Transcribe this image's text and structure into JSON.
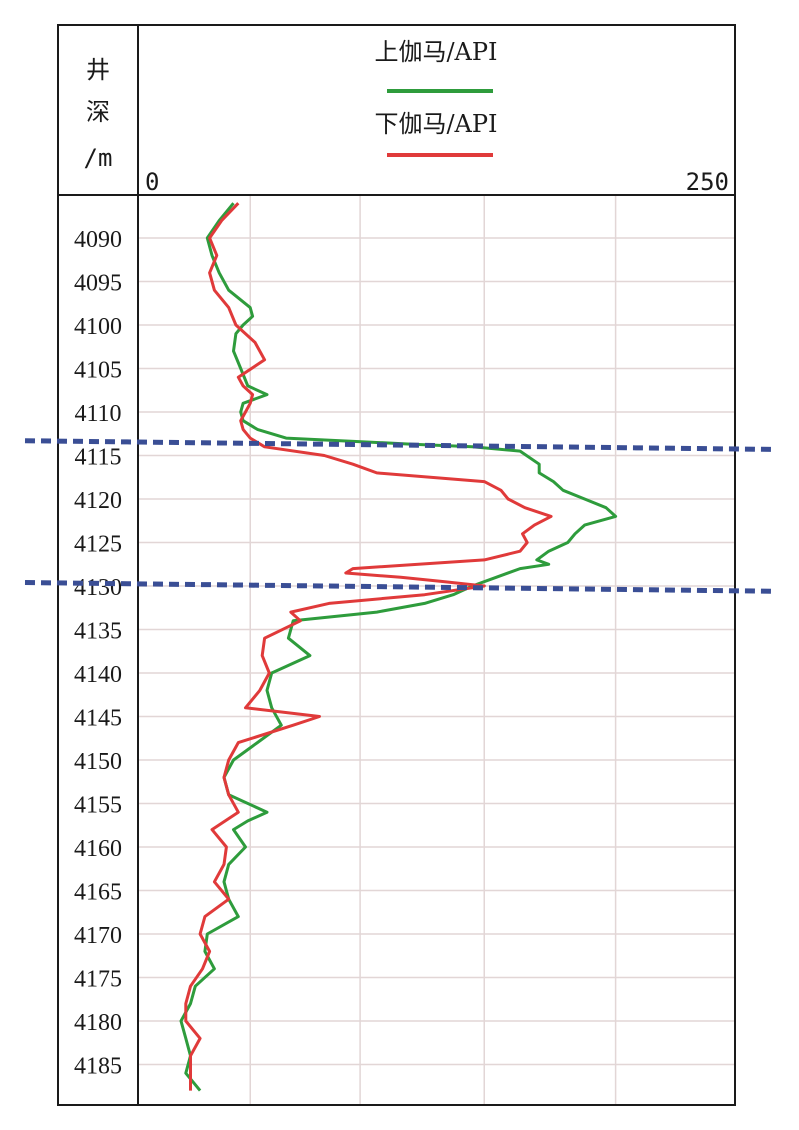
{
  "chart_data": {
    "type": "line",
    "depth_header": [
      "井",
      "深",
      "/m"
    ],
    "x_range_labels": [
      "0",
      "250"
    ],
    "xlim": [
      0,
      250
    ],
    "ylim": [
      4086,
      4190
    ],
    "depth_ticks": [
      4090,
      4095,
      4100,
      4105,
      4110,
      4115,
      4120,
      4125,
      4130,
      4135,
      4140,
      4145,
      4150,
      4155,
      4160,
      4165,
      4170,
      4175,
      4180,
      4185
    ],
    "vertical_grid": [
      47,
      93,
      145,
      200
    ],
    "series": [
      {
        "name": "上伽马/API",
        "color": "#2e9c3c",
        "points": [
          [
            4086,
            40
          ],
          [
            4088,
            34
          ],
          [
            4090,
            29
          ],
          [
            4092,
            31
          ],
          [
            4094,
            34
          ],
          [
            4096,
            38
          ],
          [
            4098,
            47
          ],
          [
            4099,
            48
          ],
          [
            4100,
            44
          ],
          [
            4101,
            41
          ],
          [
            4103,
            40
          ],
          [
            4105,
            43
          ],
          [
            4107,
            46
          ],
          [
            4108,
            54
          ],
          [
            4109,
            44
          ],
          [
            4110,
            43
          ],
          [
            4111,
            44
          ],
          [
            4112,
            50
          ],
          [
            4113,
            62
          ],
          [
            4113.7,
            115
          ],
          [
            4114,
            140
          ],
          [
            4114.5,
            160
          ],
          [
            4116,
            168
          ],
          [
            4117,
            168
          ],
          [
            4118,
            174
          ],
          [
            4119,
            178
          ],
          [
            4120,
            187
          ],
          [
            4121,
            196
          ],
          [
            4122,
            200
          ],
          [
            4123,
            187
          ],
          [
            4124,
            183
          ],
          [
            4125,
            180
          ],
          [
            4126,
            172
          ],
          [
            4127,
            167
          ],
          [
            4127.5,
            172
          ],
          [
            4128,
            160
          ],
          [
            4129,
            150
          ],
          [
            4130,
            140
          ],
          [
            4131,
            132
          ],
          [
            4132,
            120
          ],
          [
            4133,
            100
          ],
          [
            4134,
            65
          ],
          [
            4136,
            63
          ],
          [
            4138,
            72
          ],
          [
            4140,
            56
          ],
          [
            4142,
            54
          ],
          [
            4144,
            56
          ],
          [
            4146,
            60
          ],
          [
            4148,
            50
          ],
          [
            4150,
            40
          ],
          [
            4152,
            36
          ],
          [
            4154,
            38
          ],
          [
            4156,
            54
          ],
          [
            4157,
            46
          ],
          [
            4158,
            40
          ],
          [
            4160,
            45
          ],
          [
            4162,
            38
          ],
          [
            4164,
            36
          ],
          [
            4166,
            38
          ],
          [
            4168,
            42
          ],
          [
            4170,
            29
          ],
          [
            4172,
            28
          ],
          [
            4174,
            32
          ],
          [
            4176,
            24
          ],
          [
            4178,
            22
          ],
          [
            4180,
            18
          ],
          [
            4182,
            20
          ],
          [
            4184,
            22
          ],
          [
            4186,
            20
          ],
          [
            4188,
            26
          ],
          [
            4190,
            20
          ]
        ]
      },
      {
        "name": "下伽马/API",
        "color": "#e03a3a",
        "points": [
          [
            4086,
            42
          ],
          [
            4088,
            35
          ],
          [
            4090,
            30
          ],
          [
            4092,
            33
          ],
          [
            4094,
            30
          ],
          [
            4096,
            32
          ],
          [
            4098,
            38
          ],
          [
            4100,
            41
          ],
          [
            4102,
            49
          ],
          [
            4104,
            53
          ],
          [
            4106,
            42
          ],
          [
            4107,
            44
          ],
          [
            4108,
            48
          ],
          [
            4109,
            47
          ],
          [
            4110,
            45
          ],
          [
            4111,
            43
          ],
          [
            4112,
            44
          ],
          [
            4113,
            47
          ],
          [
            4114,
            53
          ],
          [
            4115,
            78
          ],
          [
            4116,
            90
          ],
          [
            4117,
            100
          ],
          [
            4118,
            145
          ],
          [
            4119,
            152
          ],
          [
            4120,
            155
          ],
          [
            4121,
            162
          ],
          [
            4122,
            173
          ],
          [
            4123,
            166
          ],
          [
            4124,
            161
          ],
          [
            4125,
            163
          ],
          [
            4126,
            160
          ],
          [
            4127,
            145
          ],
          [
            4128,
            90
          ],
          [
            4128.5,
            87
          ],
          [
            4129,
            110
          ],
          [
            4129.5,
            128
          ],
          [
            4130,
            145
          ],
          [
            4131,
            120
          ],
          [
            4132,
            80
          ],
          [
            4133,
            64
          ],
          [
            4134,
            68
          ],
          [
            4136,
            53
          ],
          [
            4138,
            52
          ],
          [
            4140,
            55
          ],
          [
            4142,
            51
          ],
          [
            4144,
            45
          ],
          [
            4145,
            76
          ],
          [
            4146,
            65
          ],
          [
            4148,
            42
          ],
          [
            4150,
            38
          ],
          [
            4152,
            36
          ],
          [
            4154,
            38
          ],
          [
            4156,
            42
          ],
          [
            4158,
            31
          ],
          [
            4160,
            37
          ],
          [
            4162,
            36
          ],
          [
            4164,
            32
          ],
          [
            4166,
            38
          ],
          [
            4168,
            28
          ],
          [
            4170,
            26
          ],
          [
            4172,
            30
          ],
          [
            4174,
            27
          ],
          [
            4176,
            22
          ],
          [
            4178,
            20
          ],
          [
            4180,
            20
          ],
          [
            4182,
            26
          ],
          [
            4184,
            22
          ],
          [
            4186,
            22
          ],
          [
            4188,
            22
          ],
          [
            4190,
            22
          ]
        ]
      }
    ],
    "markers": [
      {
        "type": "dashed-line",
        "color": "#3a4e95",
        "from": [
          4113.3,
          4114.3
        ]
      },
      {
        "type": "dashed-line",
        "color": "#3a4e95",
        "from": [
          4129.6,
          4130.6
        ]
      }
    ]
  }
}
